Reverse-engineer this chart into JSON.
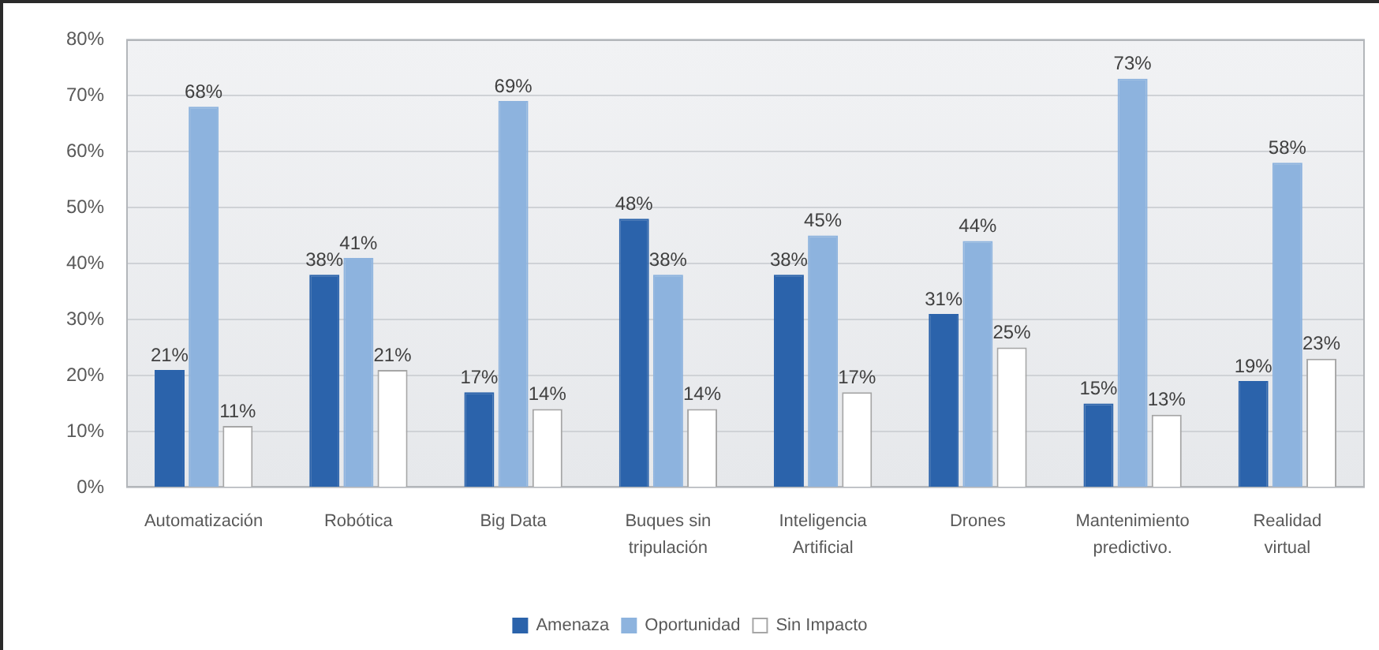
{
  "chart_data": {
    "type": "bar",
    "categories": [
      "Automatización",
      "Robótica",
      "Big Data",
      "Buques sin tripulación",
      "Inteligencia Artificial",
      "Drones",
      "Mantenimiento predictivo.",
      "Realidad virtual"
    ],
    "series": [
      {
        "name": "Amenaza",
        "color": "#2b63ab",
        "values": [
          21,
          38,
          17,
          48,
          38,
          31,
          15,
          19
        ],
        "value_labels": [
          "21%",
          "38%",
          "17%",
          "48%",
          "38%",
          "31%",
          "15%",
          "19%"
        ]
      },
      {
        "name": "Oportunidad",
        "color": "#8db3de",
        "values": [
          68,
          41,
          69,
          38,
          45,
          44,
          73,
          58
        ],
        "value_labels": [
          "68%",
          "41%",
          "69%",
          "38%",
          "45%",
          "44%",
          "73%",
          "58%"
        ]
      },
      {
        "name": "Sin Impacto",
        "color": "#ffffff",
        "values": [
          11,
          21,
          14,
          14,
          17,
          25,
          13,
          23
        ],
        "value_labels": [
          "11%",
          "21%",
          "14%",
          "14%",
          "17%",
          "25%",
          "13%",
          "23%"
        ]
      }
    ],
    "ylim": [
      0,
      80
    ],
    "yticks": [
      {
        "value": 0,
        "label": "0%"
      },
      {
        "value": 10,
        "label": "10%"
      },
      {
        "value": 20,
        "label": "20%"
      },
      {
        "value": 30,
        "label": "30%"
      },
      {
        "value": 40,
        "label": "40%"
      },
      {
        "value": 50,
        "label": "50%"
      },
      {
        "value": 60,
        "label": "60%"
      },
      {
        "value": 70,
        "label": "70%"
      },
      {
        "value": 80,
        "label": "80%"
      }
    ],
    "grid": "y",
    "legend": "bottom"
  }
}
